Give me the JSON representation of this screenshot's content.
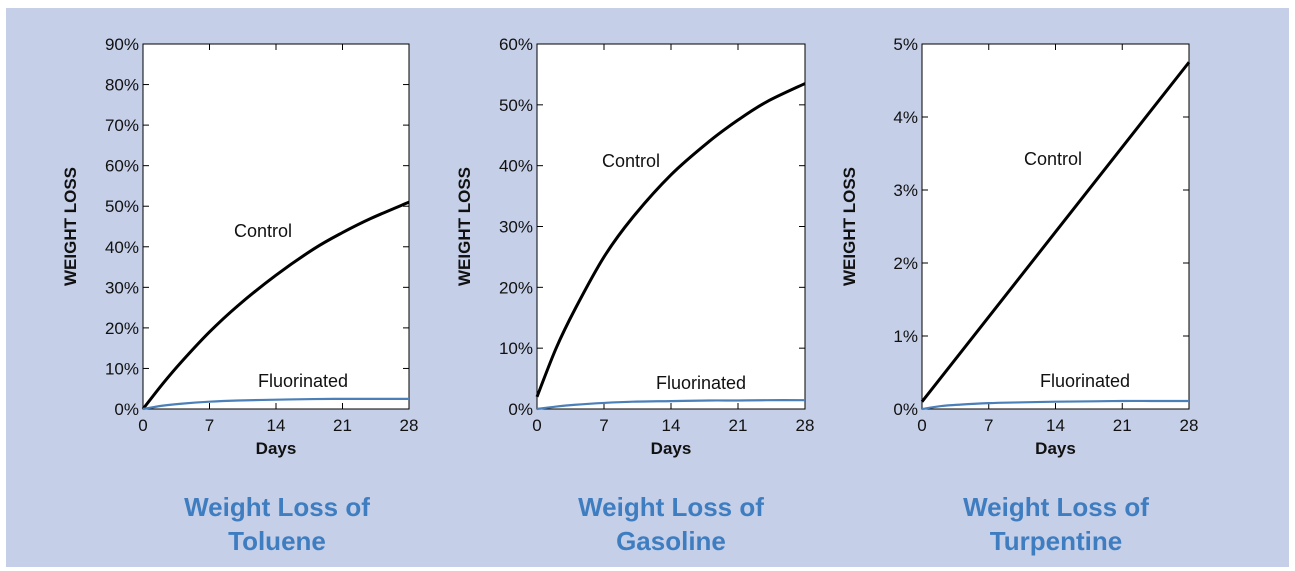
{
  "colors": {
    "background": "#c5cfe8",
    "plot": "#ffffff",
    "control": "#000000",
    "fluorinated": "#4a7fb8",
    "title": "#3f7dc1"
  },
  "chart_data": [
    {
      "type": "line",
      "title_line1": "Weight Loss of",
      "title_line2": "Toluene",
      "xlabel": "Days",
      "ylabel": "WEIGHT LOSS",
      "xlim": [
        0,
        28
      ],
      "ylim": [
        0,
        90
      ],
      "x_ticks": [
        0,
        7,
        14,
        21,
        28
      ],
      "y_ticks": [
        0,
        10,
        20,
        30,
        40,
        50,
        60,
        70,
        80,
        90
      ],
      "y_tick_labels": [
        "0%",
        "10%",
        "20%",
        "30%",
        "40%",
        "50%",
        "60%",
        "70%",
        "80%",
        "90%"
      ],
      "series": [
        {
          "name": "Control",
          "x": [
            0,
            2,
            4,
            7,
            10,
            14,
            18,
            21,
            24,
            28
          ],
          "values": [
            0,
            6,
            11.5,
            19,
            25.5,
            33,
            39.5,
            43.5,
            47,
            51
          ]
        },
        {
          "name": "Fluorinated",
          "x": [
            0,
            2,
            4,
            7,
            10,
            14,
            18,
            21,
            24,
            28
          ],
          "values": [
            0,
            0.8,
            1.3,
            1.8,
            2.1,
            2.3,
            2.45,
            2.5,
            2.5,
            2.5
          ]
        }
      ]
    },
    {
      "type": "line",
      "title_line1": "Weight Loss of",
      "title_line2": "Gasoline",
      "xlabel": "Days",
      "ylabel": "WEIGHT LOSS",
      "xlim": [
        0,
        28
      ],
      "ylim": [
        0,
        60
      ],
      "x_ticks": [
        0,
        7,
        14,
        21,
        28
      ],
      "y_ticks": [
        0,
        10,
        20,
        30,
        40,
        50,
        60
      ],
      "y_tick_labels": [
        "0%",
        "10%",
        "20%",
        "30%",
        "40%",
        "50%",
        "60%"
      ],
      "series": [
        {
          "name": "Control",
          "x": [
            0,
            2,
            4,
            7,
            10,
            14,
            18,
            21,
            24,
            28
          ],
          "values": [
            2,
            10,
            16.5,
            25,
            31.5,
            38.5,
            44,
            47.5,
            50.5,
            53.5
          ]
        },
        {
          "name": "Fluorinated",
          "x": [
            0,
            2,
            4,
            7,
            10,
            14,
            18,
            21,
            24,
            28
          ],
          "values": [
            0,
            0.4,
            0.7,
            1.0,
            1.2,
            1.3,
            1.4,
            1.4,
            1.45,
            1.45
          ]
        }
      ]
    },
    {
      "type": "line",
      "title_line1": "Weight Loss of",
      "title_line2": "Turpentine",
      "xlabel": "Days",
      "ylabel": "WEIGHT LOSS",
      "xlim": [
        0,
        28
      ],
      "ylim": [
        0,
        5
      ],
      "x_ticks": [
        0,
        7,
        14,
        21,
        28
      ],
      "y_ticks": [
        0,
        1,
        2,
        3,
        4,
        5
      ],
      "y_tick_labels": [
        "0%",
        "1%",
        "2%",
        "3%",
        "4%",
        "5%"
      ],
      "series": [
        {
          "name": "Control",
          "x": [
            0,
            28
          ],
          "values": [
            0.1,
            4.75
          ]
        },
        {
          "name": "Fluorinated",
          "x": [
            0,
            2,
            4,
            7,
            10,
            14,
            18,
            21,
            24,
            28
          ],
          "values": [
            0,
            0.04,
            0.06,
            0.08,
            0.09,
            0.1,
            0.105,
            0.11,
            0.11,
            0.11
          ]
        }
      ]
    }
  ]
}
